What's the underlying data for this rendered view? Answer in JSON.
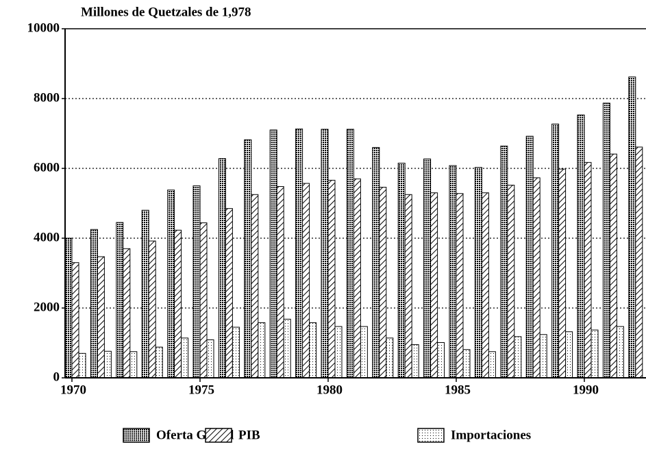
{
  "chart_data": {
    "type": "bar",
    "title": "Millones de Quetzales de 1,978",
    "categories": [
      "1970",
      null,
      null,
      null,
      null,
      "1975",
      null,
      null,
      null,
      null,
      "1980",
      null,
      null,
      null,
      null,
      "1985",
      null,
      null,
      null,
      null,
      "1990",
      null,
      null
    ],
    "series": [
      {
        "name": "Oferta Global",
        "color": "#000000",
        "pattern": "dense-dots",
        "values": [
          4000,
          4250,
          4450,
          4800,
          5380,
          5500,
          6280,
          6820,
          7100,
          7130,
          7120,
          7120,
          6600,
          6150,
          6270,
          6080,
          6030,
          6640,
          6920,
          7270,
          7530,
          7870,
          8620
        ]
      },
      {
        "name": "PIB",
        "color": "#000000",
        "pattern": "hatch",
        "values": [
          3300,
          3470,
          3700,
          3920,
          4230,
          4440,
          4850,
          5250,
          5480,
          5570,
          5660,
          5700,
          5460,
          5250,
          5300,
          5280,
          5300,
          5520,
          5730,
          5980,
          6170,
          6410,
          6610
        ]
      },
      {
        "name": "Importaciones",
        "color": "#000000",
        "pattern": "light-dots",
        "values": [
          700,
          760,
          750,
          880,
          1140,
          1090,
          1450,
          1580,
          1680,
          1580,
          1470,
          1470,
          1140,
          950,
          1010,
          810,
          750,
          1180,
          1240,
          1320,
          1370,
          1470,
          null
        ]
      }
    ],
    "ylim": [
      0,
      10000
    ],
    "yticks": [
      0,
      2000,
      4000,
      6000,
      8000,
      10000
    ],
    "grid": true,
    "legend": "bottom"
  }
}
